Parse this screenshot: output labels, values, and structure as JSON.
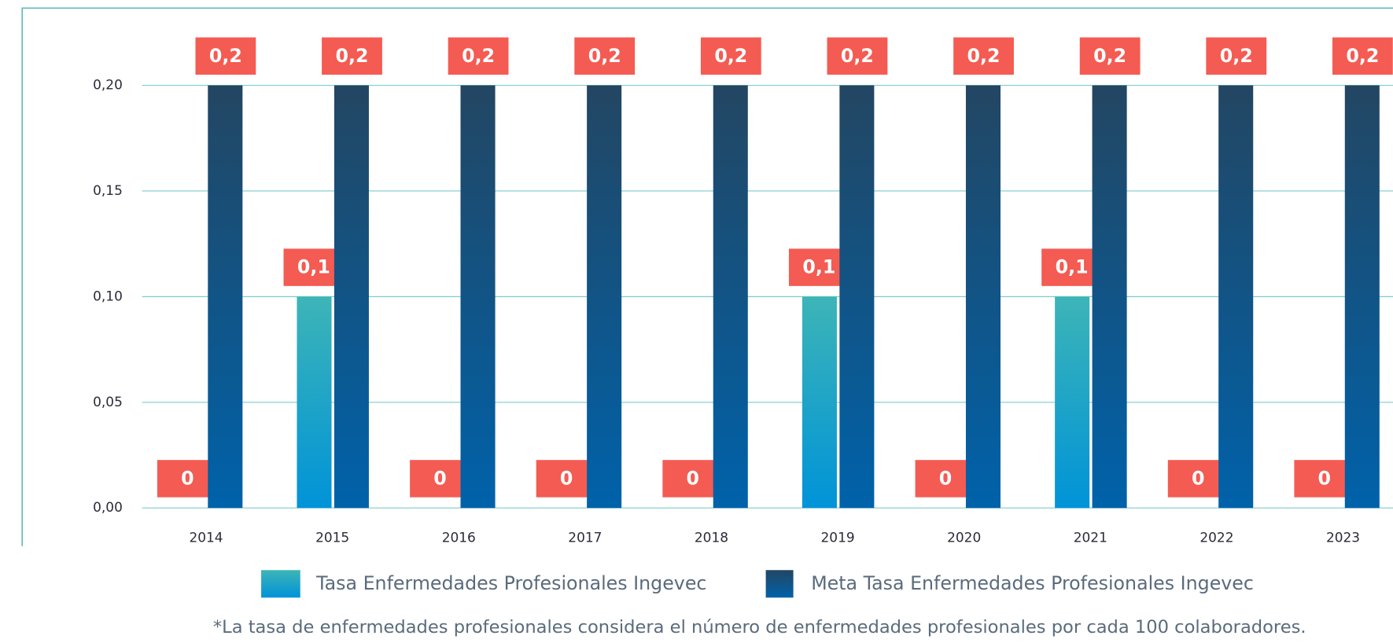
{
  "chart_data": {
    "type": "bar",
    "categories": [
      "2014",
      "2015",
      "2016",
      "2017",
      "2018",
      "2019",
      "2020",
      "2021",
      "2022",
      "2023"
    ],
    "series": [
      {
        "name": "Tasa Enfermedades Profesionales Ingevec",
        "color": [
          "#3db5b7",
          "#0093d8"
        ],
        "values": [
          0,
          0.1,
          0,
          0,
          0,
          0.1,
          0,
          0.1,
          0,
          0
        ],
        "value_labels": [
          "0",
          "0,1",
          "0",
          "0",
          "0",
          "0,1",
          "0",
          "0,1",
          "0",
          "0"
        ]
      },
      {
        "name": "Meta Tasa Enfermedades Profesionales Ingevec",
        "color": [
          "#234662",
          "#0062aa"
        ],
        "values": [
          0.2,
          0.2,
          0.2,
          0.2,
          0.2,
          0.2,
          0.2,
          0.2,
          0.2,
          0.2
        ],
        "value_labels": [
          "0,2",
          "0,2",
          "0,2",
          "0,2",
          "0,2",
          "0,2",
          "0,2",
          "0,2",
          "0,2",
          "0,2"
        ]
      }
    ],
    "ylim": [
      0,
      0.2
    ],
    "yticks": [
      {
        "value": 0,
        "label": "0,00"
      },
      {
        "value": 0.05,
        "label": "0,05"
      },
      {
        "value": 0.1,
        "label": "0,10"
      },
      {
        "value": 0.15,
        "label": "0,15"
      },
      {
        "value": 0.2,
        "label": "0,20"
      }
    ],
    "grid": true,
    "label_color": "#f45b52",
    "footnote": "*La tasa de enfermedades profesionales considera el número de enfermedades profesionales por cada 100 colaboradores."
  }
}
